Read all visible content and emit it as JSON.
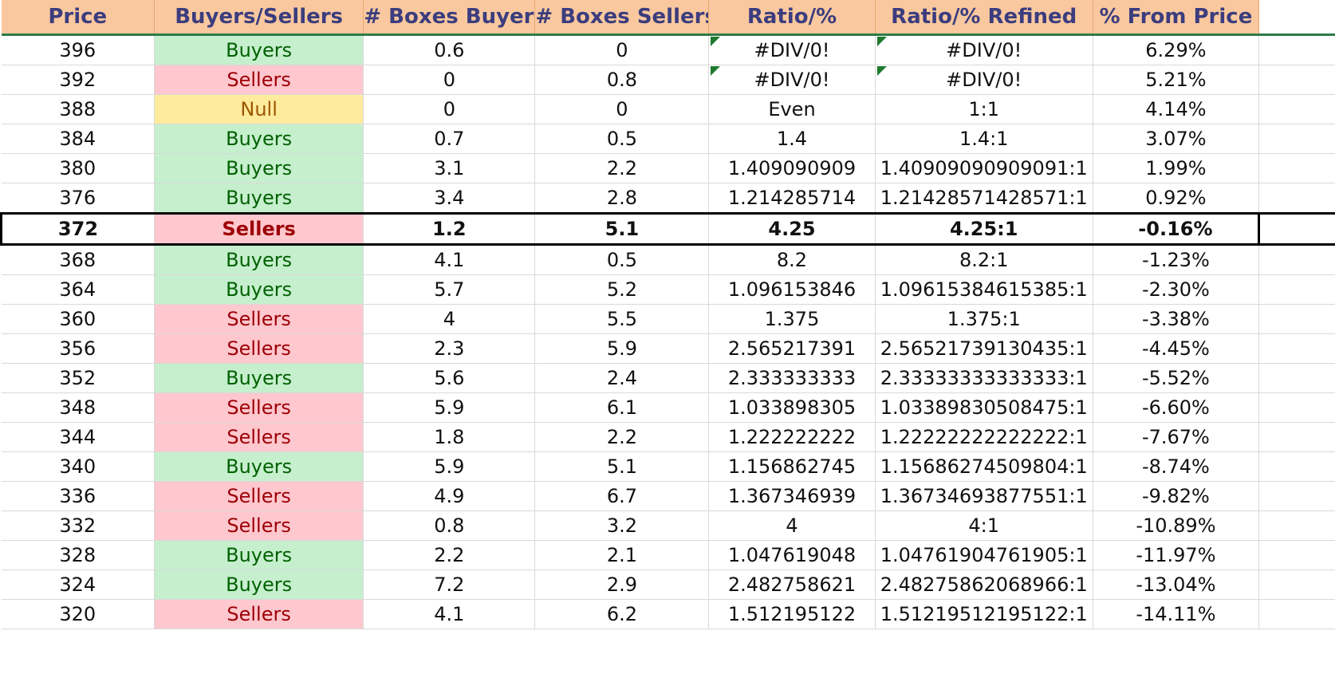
{
  "headers": {
    "price": "Price",
    "buyers_sellers": "Buyers/Sellers",
    "boxes_buyers": "# Boxes Buyers",
    "boxes_sellers": "# Boxes Sellers",
    "ratio": "Ratio/%",
    "ratio_refined": "Ratio/% Refined",
    "from_price": "% From Price"
  },
  "colors": {
    "header_bg": "#fac89e",
    "header_text": "#3b3d7e",
    "buyers_bg": "#c6efce",
    "buyers_text": "#006100",
    "sellers_bg": "#ffc7ce",
    "sellers_text": "#9c0006",
    "null_bg": "#ffeb9c",
    "null_text": "#9c5700",
    "error_flag": "#1e7a2e"
  },
  "current_price_row_index": 6,
  "rows": [
    {
      "price": "396",
      "side": "Buyers",
      "boxes_buyers": "0.6",
      "boxes_sellers": "0",
      "ratio": "#DIV/0!",
      "ratio_refined": "#DIV/0!",
      "from_price": "6.29%",
      "ratio_error_flag": true,
      "refined_error_flag": true
    },
    {
      "price": "392",
      "side": "Sellers",
      "boxes_buyers": "0",
      "boxes_sellers": "0.8",
      "ratio": "#DIV/0!",
      "ratio_refined": "#DIV/0!",
      "from_price": "5.21%",
      "ratio_error_flag": true,
      "refined_error_flag": true
    },
    {
      "price": "388",
      "side": "Null",
      "boxes_buyers": "0",
      "boxes_sellers": "0",
      "ratio": "Even",
      "ratio_refined": "1:1",
      "from_price": "4.14%"
    },
    {
      "price": "384",
      "side": "Buyers",
      "boxes_buyers": "0.7",
      "boxes_sellers": "0.5",
      "ratio": "1.4",
      "ratio_refined": "1.4:1",
      "from_price": "3.07%"
    },
    {
      "price": "380",
      "side": "Buyers",
      "boxes_buyers": "3.1",
      "boxes_sellers": "2.2",
      "ratio": "1.409090909",
      "ratio_refined": "1.40909090909091:1",
      "from_price": "1.99%"
    },
    {
      "price": "376",
      "side": "Buyers",
      "boxes_buyers": "3.4",
      "boxes_sellers": "2.8",
      "ratio": "1.214285714",
      "ratio_refined": "1.21428571428571:1",
      "from_price": "0.92%"
    },
    {
      "price": "372",
      "side": "Sellers",
      "boxes_buyers": "1.2",
      "boxes_sellers": "5.1",
      "ratio": "4.25",
      "ratio_refined": "4.25:1",
      "from_price": "-0.16%"
    },
    {
      "price": "368",
      "side": "Buyers",
      "boxes_buyers": "4.1",
      "boxes_sellers": "0.5",
      "ratio": "8.2",
      "ratio_refined": "8.2:1",
      "from_price": "-1.23%"
    },
    {
      "price": "364",
      "side": "Buyers",
      "boxes_buyers": "5.7",
      "boxes_sellers": "5.2",
      "ratio": "1.096153846",
      "ratio_refined": "1.09615384615385:1",
      "from_price": "-2.30%"
    },
    {
      "price": "360",
      "side": "Sellers",
      "boxes_buyers": "4",
      "boxes_sellers": "5.5",
      "ratio": "1.375",
      "ratio_refined": "1.375:1",
      "from_price": "-3.38%"
    },
    {
      "price": "356",
      "side": "Sellers",
      "boxes_buyers": "2.3",
      "boxes_sellers": "5.9",
      "ratio": "2.565217391",
      "ratio_refined": "2.56521739130435:1",
      "from_price": "-4.45%"
    },
    {
      "price": "352",
      "side": "Buyers",
      "boxes_buyers": "5.6",
      "boxes_sellers": "2.4",
      "ratio": "2.333333333",
      "ratio_refined": "2.33333333333333:1",
      "from_price": "-5.52%"
    },
    {
      "price": "348",
      "side": "Sellers",
      "boxes_buyers": "5.9",
      "boxes_sellers": "6.1",
      "ratio": "1.033898305",
      "ratio_refined": "1.03389830508475:1",
      "from_price": "-6.60%"
    },
    {
      "price": "344",
      "side": "Sellers",
      "boxes_buyers": "1.8",
      "boxes_sellers": "2.2",
      "ratio": "1.222222222",
      "ratio_refined": "1.22222222222222:1",
      "from_price": "-7.67%"
    },
    {
      "price": "340",
      "side": "Buyers",
      "boxes_buyers": "5.9",
      "boxes_sellers": "5.1",
      "ratio": "1.156862745",
      "ratio_refined": "1.15686274509804:1",
      "from_price": "-8.74%"
    },
    {
      "price": "336",
      "side": "Sellers",
      "boxes_buyers": "4.9",
      "boxes_sellers": "6.7",
      "ratio": "1.367346939",
      "ratio_refined": "1.36734693877551:1",
      "from_price": "-9.82%"
    },
    {
      "price": "332",
      "side": "Sellers",
      "boxes_buyers": "0.8",
      "boxes_sellers": "3.2",
      "ratio": "4",
      "ratio_refined": "4:1",
      "from_price": "-10.89%"
    },
    {
      "price": "328",
      "side": "Buyers",
      "boxes_buyers": "2.2",
      "boxes_sellers": "2.1",
      "ratio": "1.047619048",
      "ratio_refined": "1.04761904761905:1",
      "from_price": "-11.97%"
    },
    {
      "price": "324",
      "side": "Buyers",
      "boxes_buyers": "7.2",
      "boxes_sellers": "2.9",
      "ratio": "2.482758621",
      "ratio_refined": "2.48275862068966:1",
      "from_price": "-13.04%"
    },
    {
      "price": "320",
      "side": "Sellers",
      "boxes_buyers": "4.1",
      "boxes_sellers": "6.2",
      "ratio": "1.512195122",
      "ratio_refined": "1.51219512195122:1",
      "from_price": "-14.11%"
    }
  ]
}
